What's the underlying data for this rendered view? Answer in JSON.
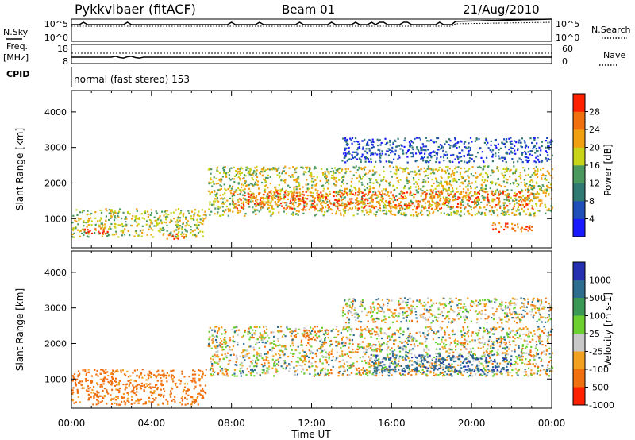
{
  "header": {
    "station": "Pykkvibaer (fitACF)",
    "beam": "Beam 01",
    "date": "21/Aug/2010"
  },
  "noise_panel": {
    "left_label": "N.Sky",
    "left_ticks": [
      "10^5",
      "10^0"
    ],
    "right_ticks": [
      "10^5",
      "10^0"
    ],
    "right_label": "N.Search"
  },
  "freq_panel": {
    "left_label_1": "Freq.",
    "left_label_2": "[MHz]",
    "left_ticks": [
      "18",
      "8"
    ],
    "right_ticks": [
      "60",
      "0"
    ],
    "right_label": "Nave"
  },
  "cpid": {
    "label": "CPID",
    "mode": "normal (fast stereo) 153"
  },
  "colors": {
    "scale": [
      "#1a1aff",
      "#1f4fb8",
      "#2f7a72",
      "#4a9a60",
      "#c8d418",
      "#f0a010",
      "#f07010",
      "#ff2000"
    ],
    "velocity": [
      "#2530b0",
      "#2d6e90",
      "#3a9a55",
      "#6cd030",
      "#c8c8c8",
      "#f2a020",
      "#f07010",
      "#ff2000"
    ],
    "ground": "#c8c8c8"
  },
  "chart_data": [
    {
      "type": "heatmap",
      "name": "power",
      "ylabel": "Slant Range [km]",
      "yticks": [
        1000,
        2000,
        3000,
        4000
      ],
      "ylim": [
        180,
        4600
      ],
      "xlim_hours": [
        0,
        24
      ],
      "colorbar": {
        "label": "Power [dB]",
        "ticks": [
          "4",
          "8",
          "12",
          "16",
          "20",
          "24",
          "28"
        ],
        "range": [
          0,
          30
        ]
      },
      "echo_bands": [
        {
          "t0": 0.0,
          "t1": 6.7,
          "r0": 500,
          "r1": 1300,
          "level": 4
        },
        {
          "t0": 0.6,
          "t1": 1.8,
          "r0": 600,
          "r1": 800,
          "level": 7
        },
        {
          "t0": 4.5,
          "t1": 5.8,
          "r0": 450,
          "r1": 600,
          "level": 6
        },
        {
          "t0": 6.8,
          "t1": 24.0,
          "r0": 1100,
          "r1": 2500,
          "level": 4
        },
        {
          "t0": 8.0,
          "t1": 23.0,
          "r0": 1300,
          "r1": 1800,
          "level": 6
        },
        {
          "t0": 21.0,
          "t1": 23.0,
          "r0": 650,
          "r1": 900,
          "level": 6
        },
        {
          "t0": 13.5,
          "t1": 24.0,
          "r0": 2600,
          "r1": 3300,
          "level": 1
        }
      ]
    },
    {
      "type": "heatmap",
      "name": "velocity",
      "ylabel": "Slant Range [km]",
      "yticks": [
        1000,
        2000,
        3000,
        4000
      ],
      "ylim": [
        180,
        4600
      ],
      "xlim_hours": [
        0,
        24
      ],
      "xlabel": "Time UT",
      "xticks": [
        "00:00",
        "04:00",
        "08:00",
        "12:00",
        "16:00",
        "20:00",
        "00:00"
      ],
      "colorbar": {
        "label": "Velocity [m s-1]",
        "ticks": [
          "1000",
          "500",
          "100",
          "25",
          "-25",
          "-100",
          "-500",
          "-1000"
        ]
      },
      "echo_bands": [
        {
          "t0": 0.0,
          "t1": 6.7,
          "r0": 300,
          "r1": 1300,
          "vel": -200
        },
        {
          "t0": 6.8,
          "t1": 24.0,
          "r0": 1100,
          "r1": 2500,
          "vel": 0
        },
        {
          "t0": 15.0,
          "t1": 22.0,
          "r0": 1200,
          "r1": 1700,
          "vel": 400
        },
        {
          "t0": 11.5,
          "t1": 12.5,
          "r0": 2100,
          "r1": 2400,
          "vel": -300
        },
        {
          "t0": 13.5,
          "t1": 24.0,
          "r0": 2600,
          "r1": 3300,
          "vel": 0
        }
      ]
    }
  ]
}
